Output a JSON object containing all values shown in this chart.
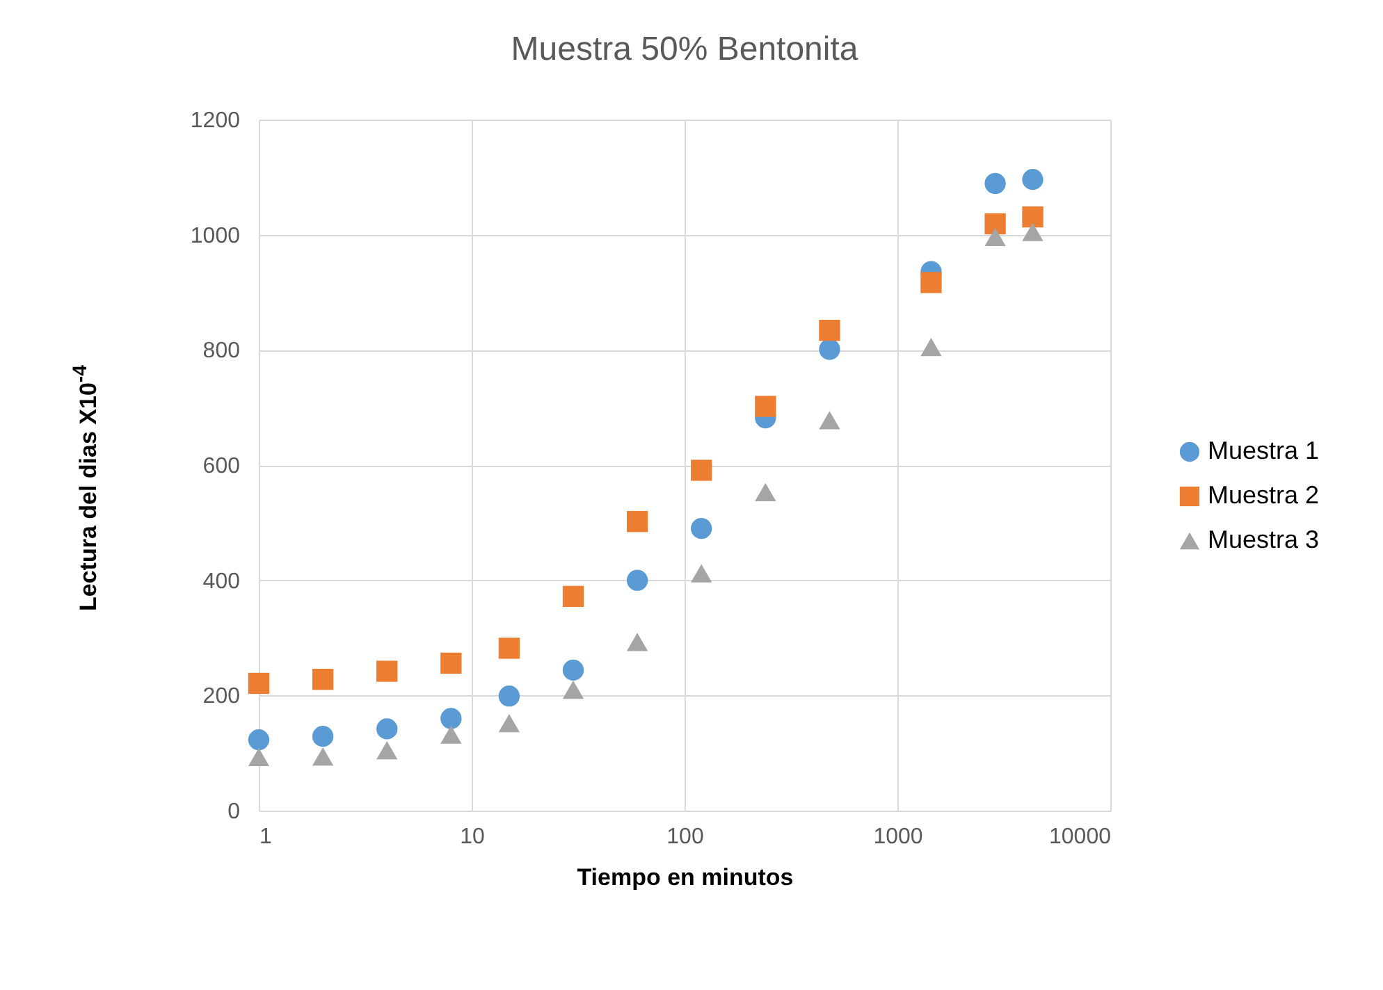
{
  "chart_data": {
    "type": "scatter",
    "title": "Muestra 50% Bentonita",
    "xlabel": "Tiempo en minutos",
    "ylabel": "Lectura del dias X10$^{-4}$",
    "x": [
      1,
      2,
      4,
      8,
      15,
      30,
      60,
      120,
      240,
      480,
      1440,
      2880,
      4320
    ],
    "series": [
      {
        "name": "Muestra 1",
        "color": "#5b9bd5",
        "marker": "circle",
        "values": [
          123,
          129,
          142,
          160,
          199,
          244,
          400,
          490,
          682,
          801,
          936,
          1089,
          1096
        ]
      },
      {
        "name": "Muestra 2",
        "color": "#ed7d31",
        "marker": "square",
        "values": [
          221,
          228,
          242,
          256,
          282,
          372,
          502,
          591,
          702,
          834,
          917,
          1019,
          1031
        ]
      },
      {
        "name": "Muestra 3",
        "color": "#a5a5a5",
        "marker": "triangle",
        "values": [
          93,
          94,
          105,
          132,
          152,
          210,
          293,
          412,
          553,
          678,
          805,
          996,
          1005
        ]
      }
    ],
    "log": "x",
    "xlim": [
      1,
      10000
    ],
    "xticks": [
      1,
      10,
      100,
      1000,
      10000
    ],
    "ylim": [
      0,
      1200
    ],
    "yticks": [
      0,
      200,
      400,
      600,
      800,
      1000,
      1200
    ],
    "grid": true,
    "legend": "right"
  }
}
